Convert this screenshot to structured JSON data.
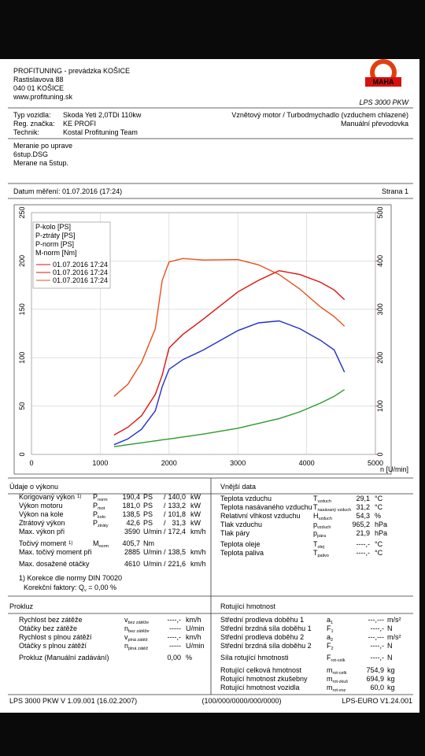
{
  "header": {
    "company": [
      "PROFITUNING - prevádzka KOŠICE",
      "Rastislavova 88",
      "040 01 KOŠICE",
      "www.profituning.sk"
    ],
    "logo": "MAHA",
    "model": "LPS 3000 PKW"
  },
  "vehicle": {
    "rows": [
      [
        "Typ vozidla:",
        "Skoda Yeti 2,0TDi 110kw"
      ],
      [
        "Reg. značka:",
        "KE PROFI"
      ],
      [
        "Technik:",
        "Kostal Profituning Team"
      ]
    ],
    "engine": "Vznětový motor / Turbodmychadlo (vzduchem chlazené)",
    "gearbox": "Manuální převodovka"
  },
  "notes": [
    "Meranie po uprave",
    "6stup.DSG",
    "Merane na 5stup."
  ],
  "date": "Datum měření: 01.07.2016 (17:24)",
  "page": "Strana 1",
  "chart_data": {
    "type": "line",
    "x_label": "n [U/min]",
    "x": [
      1200,
      1400,
      1600,
      1800,
      1900,
      2000,
      2200,
      2500,
      3000,
      3300,
      3600,
      3900,
      4200,
      4400,
      4550
    ],
    "series": [
      {
        "name": "P-kolo [PS]",
        "color": "#2230c8",
        "values": [
          10,
          16,
          26,
          45,
          70,
          88,
          98,
          108,
          128,
          136,
          138,
          130,
          118,
          108,
          85
        ]
      },
      {
        "name": "P-ztráty [PS]",
        "color": "#2a9a2a",
        "values": [
          8,
          10,
          12,
          14,
          15,
          16,
          18,
          21,
          27,
          32,
          37,
          44,
          53,
          60,
          67
        ]
      },
      {
        "name": "P-norm [PS]",
        "color": "#dd1111",
        "values": [
          20,
          28,
          40,
          62,
          82,
          110,
          124,
          140,
          168,
          180,
          190,
          186,
          178,
          170,
          160
        ]
      },
      {
        "name": "M-norm [Nm]",
        "color": "#e8501c",
        "axis": "y2",
        "values": [
          120,
          145,
          190,
          260,
          360,
          398,
          405,
          402,
          403,
          392,
          372,
          342,
          305,
          285,
          265
        ]
      }
    ],
    "legend_dates": [
      {
        "label": "01.07.2016 17:24",
        "color": "#dd1111"
      },
      {
        "label": "01.07.2016 17:24",
        "color": "#dd1111"
      },
      {
        "label": "01.07.2016 17:24",
        "color": "#e8501c"
      }
    ],
    "xlim": [
      0,
      5000
    ],
    "xticks": [
      0,
      1000,
      2000,
      3000,
      4000,
      5000
    ],
    "ylim": [
      0,
      250
    ],
    "yticks": [
      0,
      50,
      100,
      150,
      200,
      250
    ],
    "y2lim": [
      0,
      500
    ],
    "y2ticks": [
      0,
      100,
      200,
      300,
      400,
      500
    ],
    "y2_color": "#e8601c",
    "grid": true
  },
  "performance": {
    "title": "Údaje o výkonu",
    "groups": [
      [
        {
          "label": "Korigovaný výkon",
          "note": "1)",
          "sym": "P",
          "sub": "norm",
          "v1": "190,4",
          "u1": "PS",
          "sep": "/",
          "v2": "140,0",
          "u2": "kW",
          "color": "#e00000"
        },
        {
          "label": "Výkon motoru",
          "sym": "P",
          "sub": "mot",
          "v1": "181,0",
          "u1": "PS",
          "sep": "/",
          "v2": "133,2",
          "u2": "kW",
          "color": "#e00000"
        },
        {
          "label": "Výkon na kole",
          "sym": "P",
          "sub": "kolo",
          "v1": "138,5",
          "u1": "PS",
          "sep": "/",
          "v2": "101,8",
          "u2": "kW",
          "color": "#0000cc"
        },
        {
          "label": "Ztrátový výkon",
          "sym": "P",
          "sub": "ztráty",
          "v1": "42,6",
          "u1": "PS",
          "sep": "/",
          "v2": "31,3",
          "u2": "kW",
          "color": "#009900"
        },
        {
          "label": "Max. výkon při",
          "v1": "3590",
          "u1": "U/min",
          "sep": "/",
          "v2": "172,4",
          "u2": "km/h",
          "color": "#000000",
          "value_color": "#777777"
        }
      ],
      [
        {
          "label": "Točivý moment",
          "note": "1)",
          "sym": "M",
          "sub": "norm",
          "v1": "405,7",
          "u1": "Nm",
          "color": "#e00000"
        },
        {
          "label": "Max. točivý moment při",
          "v1": "2885",
          "u1": "U/min",
          "sep": "/",
          "v2": "138,5",
          "u2": "km/h",
          "color": "#000000",
          "value_color": "#777777"
        }
      ],
      [
        {
          "label": "Max. dosažené otáčky",
          "v1": "4610",
          "u1": "U/min",
          "sep": "/",
          "v2": "221,6",
          "u2": "km/h",
          "color": "#000000",
          "value_color": "#777777"
        }
      ]
    ],
    "footnote": "1) Korekce dle normy DIN 70020",
    "factor": {
      "text": "Korekční faktory: Q",
      "sub": "v",
      "rest": " =  0,00 %"
    }
  },
  "external": {
    "title": "Vnější data",
    "groups": [
      [
        {
          "label": "Teplota vzduchu",
          "sym": "T",
          "sub": "vzduch",
          "value": "29,1",
          "unit": "°C"
        },
        {
          "label": "Teplota nasávaného vzduchu",
          "sym": "T",
          "sub": "nasávaný vzduch",
          "value": "31,2",
          "unit": "°C"
        },
        {
          "label": "Relativní vlhkost vzduchu",
          "sym": "H",
          "sub": "vzduch",
          "value": "54,3",
          "unit": "%"
        },
        {
          "label": "Tlak vzduchu",
          "sym": "p",
          "sub": "vzduch",
          "value": "965,2",
          "unit": "hPa"
        },
        {
          "label": "Tlak páry",
          "sym": "p",
          "sub": "pára",
          "value": "21,9",
          "unit": "hPa"
        }
      ],
      [
        {
          "label": "Teplota oleje",
          "sym": "T",
          "sub": "olej",
          "value": "----,-",
          "unit": "°C"
        },
        {
          "label": "Teplota paliva",
          "sym": "T",
          "sub": "palivo",
          "value": "----,-",
          "unit": "°C"
        }
      ]
    ]
  },
  "slip": {
    "title": "Prokluz",
    "groups": [
      [
        {
          "label": "Rychlost bez zátěže",
          "sym": "v",
          "sub": "bez zátěže",
          "value": "----,-",
          "unit": "km/h"
        },
        {
          "label": "Otáčky bez zátěže",
          "sym": "n",
          "sub": "bez zátěže",
          "value": "-----",
          "unit": "U/min"
        },
        {
          "label": "Rychlost s plnou zátěží",
          "sym": "v",
          "sub": "plná zátěž",
          "value": "----,-",
          "unit": "km/h"
        },
        {
          "label": "Otáčky s plnou zátěží",
          "sym": "n",
          "sub": "plná zátěž",
          "value": "-----",
          "unit": "U/min"
        }
      ],
      [
        {
          "label": "Prokluz (Manuální zadávání)",
          "value": "0,00",
          "unit": "%"
        }
      ]
    ]
  },
  "rotating": {
    "title": "Rotující hmotnost",
    "groups": [
      [
        {
          "label": "Střední prodleva doběhu 1",
          "sym": "a",
          "sub": "1",
          "value": "---,---",
          "unit": "m/s²"
        },
        {
          "label": "Střední brzdná síla doběhu 1",
          "sym": "F",
          "sub": "1",
          "value": "----,-",
          "unit": "N"
        },
        {
          "label": "Střední prodleva doběhu 2",
          "sym": "a",
          "sub": "2",
          "value": "---,---",
          "unit": "m/s²"
        },
        {
          "label": "Střední brzdná síla doběhu 2",
          "sym": "F",
          "sub": "2",
          "value": "----,-",
          "unit": "N"
        }
      ],
      [
        {
          "label": "Síla rotující hmotnosti",
          "sym": "F",
          "sub": "rot-celk",
          "value": "----,-",
          "unit": "N"
        }
      ],
      [
        {
          "label": "Rotující celková hmotnost",
          "sym": "m",
          "sub": "rot-celk",
          "value": "754,9",
          "unit": "kg"
        },
        {
          "label": "Rotující hmotnost zkušebny",
          "sym": "m",
          "sub": "rot-zkuš",
          "value": "694,9",
          "unit": "kg"
        },
        {
          "label": "Rotující hmotnost vozidla",
          "sym": "m",
          "sub": "rot-voz",
          "value": "60,0",
          "unit": "kg"
        }
      ]
    ]
  },
  "footer": [
    "LPS 3000 PKW V 1.09.001 (16.02.2007)",
    "(100/000/0000/000/0000)",
    "LPS-EURO V1.24.001"
  ]
}
